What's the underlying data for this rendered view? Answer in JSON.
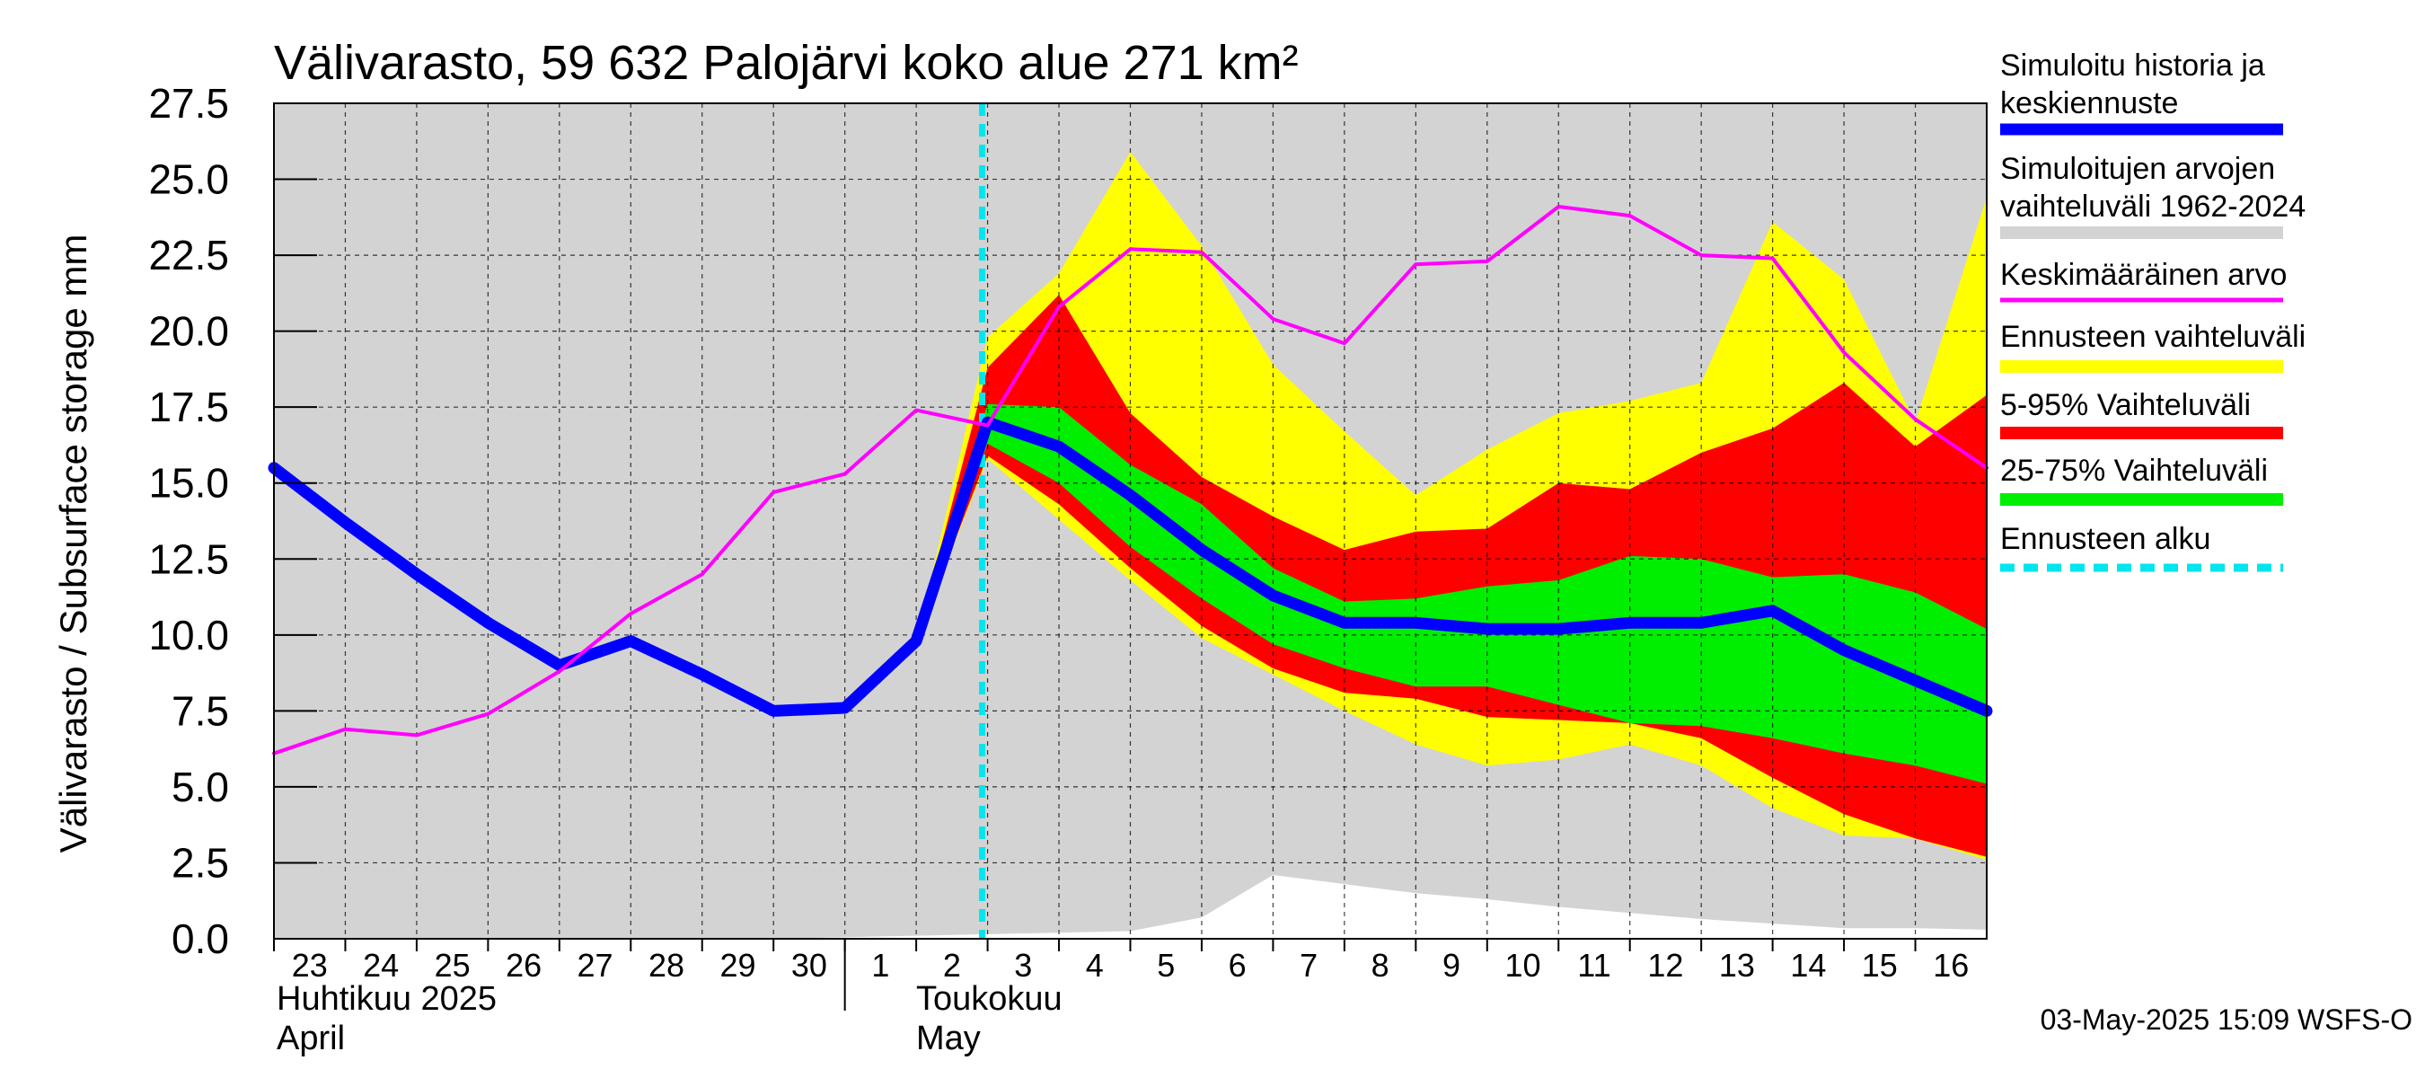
{
  "chart_data": {
    "type": "area",
    "title": "Välivarasto, 59 632 Palojärvi koko alue 271 km²",
    "ylabel": "Välivarasto / Subsurface storage  mm",
    "ylim": [
      0,
      27.5
    ],
    "yticks": [
      "0.0",
      "2.5",
      "5.0",
      "7.5",
      "10.0",
      "12.5",
      "15.0",
      "17.5",
      "20.0",
      "22.5",
      "25.0",
      "27.5"
    ],
    "grid": true,
    "x_range": [
      "2025-04-23",
      "2025-05-17"
    ],
    "day_labels": [
      "23",
      "24",
      "25",
      "26",
      "27",
      "28",
      "29",
      "30",
      "1",
      "2",
      "3",
      "4",
      "5",
      "6",
      "7",
      "8",
      "9",
      "10",
      "11",
      "12",
      "13",
      "14",
      "15",
      "16"
    ],
    "month_labels": [
      {
        "fi": "Huhtikuu  2025",
        "en": "April"
      },
      {
        "fi": "Toukokuu",
        "en": "May"
      }
    ],
    "forecast_start": "2025-05-03",
    "timestamp": "03-May-2025 15:09 WSFS-O",
    "legend_position": "right",
    "legend": [
      {
        "label": "Simuloitu historia ja keskiennuste",
        "color": "#0000ff",
        "style": "thick"
      },
      {
        "label": "Simuloitujen arvojen vaihteluväli 1962-2024",
        "color": "#d3d3d3",
        "style": "band"
      },
      {
        "label": "Keskimääräinen arvo",
        "color": "#ff00ff",
        "style": "line"
      },
      {
        "label": "Ennusteen vaihteluväli",
        "color": "#ffff00",
        "style": "band"
      },
      {
        "label": "5-95% Vaihteluväli",
        "color": "#ff0000",
        "style": "band"
      },
      {
        "label": "25-75% Vaihteluväli",
        "color": "#00ee00",
        "style": "band"
      },
      {
        "label": "Ennusteen alku",
        "color": "#00e5ee",
        "style": "dashed"
      }
    ],
    "x": [
      "2025-04-23",
      "2025-04-24",
      "2025-04-25",
      "2025-04-26",
      "2025-04-27",
      "2025-04-28",
      "2025-04-29",
      "2025-04-30",
      "2025-05-01",
      "2025-05-02",
      "2025-05-03",
      "2025-05-04",
      "2025-05-05",
      "2025-05-06",
      "2025-05-07",
      "2025-05-08",
      "2025-05-09",
      "2025-05-10",
      "2025-05-11",
      "2025-05-12",
      "2025-05-13",
      "2025-05-14",
      "2025-05-15",
      "2025-05-16",
      "2025-05-17"
    ],
    "series": [
      {
        "name": "Simuloitu historia ja keskiennuste",
        "color": "#0000ff",
        "values": [
          15.5,
          13.7,
          12.0,
          10.4,
          9.0,
          9.8,
          8.7,
          7.5,
          7.6,
          9.8,
          17.0,
          16.2,
          14.6,
          12.8,
          11.3,
          10.4,
          10.4,
          10.2,
          10.2,
          10.4,
          10.4,
          10.8,
          9.5,
          8.5,
          7.5
        ]
      },
      {
        "name": "Keskimääräinen arvo",
        "color": "#ff00ff",
        "values": [
          6.1,
          6.9,
          6.7,
          7.4,
          8.8,
          10.7,
          12.0,
          14.7,
          15.3,
          17.4,
          16.9,
          20.8,
          22.7,
          22.6,
          20.4,
          19.6,
          22.2,
          22.3,
          24.1,
          23.8,
          22.5,
          22.4,
          19.3,
          17.1,
          15.5
        ]
      }
    ],
    "bands": [
      {
        "name": "Simuloitujen arvojen vaihteluväli 1962-2024",
        "color": "#d3d3d3",
        "lower": [
          0.0,
          0.0,
          0.0,
          0.0,
          0.0,
          0.0,
          0.0,
          0.0,
          0.05,
          0.1,
          0.15,
          0.2,
          0.25,
          0.7,
          2.1,
          1.8,
          1.5,
          1.3,
          1.05,
          0.85,
          0.65,
          0.5,
          0.35,
          0.35,
          0.3
        ],
        "upper": [
          27.5,
          27.5,
          27.5,
          27.5,
          27.5,
          27.5,
          27.5,
          27.5,
          27.5,
          27.5,
          27.5,
          27.5,
          27.5,
          27.5,
          27.5,
          27.5,
          27.5,
          27.5,
          27.5,
          27.5,
          27.5,
          27.5,
          27.5,
          27.5,
          27.5
        ]
      },
      {
        "name": "Ennusteen vaihteluväli",
        "color": "#ffff00",
        "x": [
          "2025-05-02",
          "2025-05-03",
          "2025-05-04",
          "2025-05-05",
          "2025-05-06",
          "2025-05-07",
          "2025-05-08",
          "2025-05-09",
          "2025-05-10",
          "2025-05-11",
          "2025-05-12",
          "2025-05-13",
          "2025-05-14",
          "2025-05-15",
          "2025-05-16",
          "2025-05-17"
        ],
        "lower": [
          9.8,
          15.8,
          13.8,
          11.8,
          9.9,
          8.7,
          7.5,
          6.4,
          5.7,
          5.9,
          6.4,
          5.7,
          4.3,
          3.4,
          3.3,
          2.6
        ],
        "upper": [
          9.8,
          19.8,
          21.9,
          25.9,
          22.8,
          18.9,
          16.7,
          14.6,
          16.1,
          17.3,
          17.7,
          18.3,
          23.6,
          21.7,
          17.0,
          24.4
        ]
      },
      {
        "name": "5-95% Vaihteluväli",
        "color": "#ff0000",
        "x": [
          "2025-05-02",
          "2025-05-03",
          "2025-05-04",
          "2025-05-05",
          "2025-05-06",
          "2025-05-07",
          "2025-05-08",
          "2025-05-09",
          "2025-05-10",
          "2025-05-11",
          "2025-05-12",
          "2025-05-13",
          "2025-05-14",
          "2025-05-15",
          "2025-05-16",
          "2025-05-17"
        ],
        "lower": [
          9.8,
          15.9,
          14.3,
          12.2,
          10.3,
          8.9,
          8.1,
          7.9,
          7.3,
          7.2,
          7.1,
          6.6,
          5.3,
          4.1,
          3.3,
          2.7
        ],
        "upper": [
          9.8,
          18.8,
          21.2,
          17.3,
          15.2,
          13.9,
          12.8,
          13.4,
          13.5,
          15.0,
          14.8,
          16.0,
          16.8,
          18.3,
          16.2,
          17.9
        ]
      },
      {
        "name": "25-75% Vaihteluväli",
        "color": "#00ee00",
        "x": [
          "2025-05-02",
          "2025-05-03",
          "2025-05-04",
          "2025-05-05",
          "2025-05-06",
          "2025-05-07",
          "2025-05-08",
          "2025-05-09",
          "2025-05-10",
          "2025-05-11",
          "2025-05-12",
          "2025-05-13",
          "2025-05-14",
          "2025-05-15",
          "2025-05-16",
          "2025-05-17"
        ],
        "lower": [
          9.8,
          16.3,
          15.0,
          12.9,
          11.2,
          9.7,
          8.9,
          8.3,
          8.3,
          7.7,
          7.1,
          7.0,
          6.6,
          6.1,
          5.7,
          5.1
        ],
        "upper": [
          9.8,
          17.6,
          17.5,
          15.6,
          14.3,
          12.2,
          11.1,
          11.2,
          11.6,
          11.8,
          12.6,
          12.5,
          11.9,
          12.0,
          11.4,
          10.2
        ]
      }
    ]
  }
}
